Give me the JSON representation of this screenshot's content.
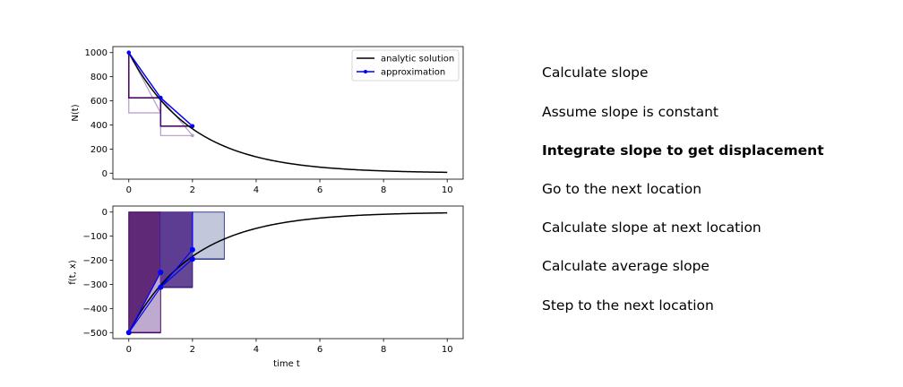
{
  "steps": [
    {
      "label": "Calculate slope",
      "active": false
    },
    {
      "label": "Assume slope is constant",
      "active": false
    },
    {
      "label": "Integrate slope to get displacement",
      "active": true
    },
    {
      "label": "Go to the next location",
      "active": false
    },
    {
      "label": "Calculate slope at next location",
      "active": false
    },
    {
      "label": "Calculate average slope",
      "active": false
    },
    {
      "label": "Step to the next location",
      "active": false
    }
  ],
  "colors": {
    "analytic": "#000000",
    "approx": "#0000ff",
    "purple_dark": "#4b0c64",
    "purple_mid": "#3d1a7a",
    "purple_light": "#b39ac7",
    "navy_light": "#b8bdd6"
  },
  "chart_data": [
    {
      "type": "line",
      "xlabel": "",
      "ylabel": "$N(t)$",
      "ylabel_display": "N(t)",
      "xlim": [
        -0.5,
        10.5
      ],
      "ylim": [
        -50,
        1050
      ],
      "xticks": [
        0,
        2,
        4,
        6,
        8,
        10
      ],
      "yticks": [
        0,
        200,
        400,
        600,
        800,
        1000
      ],
      "legend": {
        "placement": "top-right",
        "entries": [
          "analytic solution",
          "approximation"
        ]
      },
      "analytic": {
        "name": "analytic solution",
        "N0": 1000,
        "k": 0.5,
        "x_range": [
          0,
          10
        ]
      },
      "approximation": {
        "name": "approximation",
        "x": [
          0,
          1,
          2
        ],
        "y": [
          1000,
          625,
          390
        ]
      },
      "steps": [
        {
          "x0": 0,
          "y0": 1000,
          "y1": 625,
          "slope_rect_to": 500
        },
        {
          "x0": 1,
          "y0": 625,
          "y1": 390,
          "slope_rect_to": 312
        }
      ],
      "faded_points": [
        {
          "x": 2,
          "y": 312
        }
      ]
    },
    {
      "type": "line",
      "xlabel": "time $t$",
      "xlabel_display": "time t",
      "ylabel": "$f(t,x)$",
      "ylabel_display": "f(t, x)",
      "xlim": [
        -0.5,
        10.5
      ],
      "ylim": [
        -525,
        25
      ],
      "xticks": [
        0,
        2,
        4,
        6,
        8,
        10
      ],
      "yticks": [
        0,
        -100,
        -200,
        -300,
        -400,
        -500
      ],
      "analytic": {
        "name": "analytic solution",
        "A": -500,
        "k": 0.5,
        "x_range": [
          0,
          10
        ]
      },
      "rectangles": [
        {
          "x0": 0,
          "x1": 1,
          "y": -500,
          "color": "purple_light"
        },
        {
          "x0": 1,
          "x1": 2,
          "y": -312,
          "color": "purple_mid"
        },
        {
          "x0": 2,
          "x1": 3,
          "y": -195,
          "color": "navy_light"
        }
      ],
      "trapezoids": [
        {
          "x": [
            0,
            1
          ],
          "y": [
            -500,
            -250
          ],
          "color": "purple_dark"
        },
        {
          "x": [
            1,
            2
          ],
          "y": [
            -312,
            -156
          ],
          "color": "purple_mid"
        }
      ],
      "points": [
        {
          "x": 0,
          "y": -500
        },
        {
          "x": 1,
          "y": -250
        },
        {
          "x": 1,
          "y": -312
        },
        {
          "x": 2,
          "y": -156
        },
        {
          "x": 2,
          "y": -195
        }
      ]
    }
  ]
}
